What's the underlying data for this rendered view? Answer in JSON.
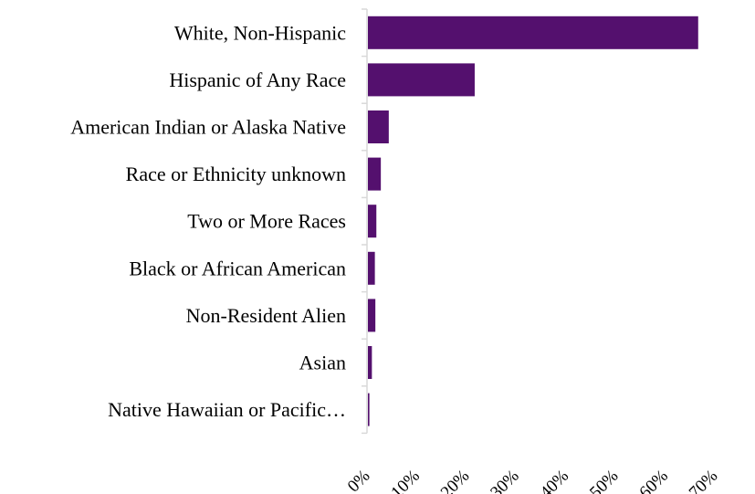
{
  "chart_data": {
    "type": "bar",
    "orientation": "horizontal",
    "categories": [
      "White, Non-Hispanic",
      "Hispanic of Any Race",
      "American Indian or Alaska Native",
      "Race or Ethnicity unknown",
      "Two or More Races",
      "Black or African American",
      "Non-Resident Alien",
      "Asian",
      "Native Hawaiian or Pacific…"
    ],
    "values": [
      66.5,
      21.5,
      4.2,
      2.6,
      1.7,
      1.4,
      1.5,
      0.8,
      0.3
    ],
    "xlim": [
      0,
      70
    ],
    "x_ticks": [
      "0%",
      "10%",
      "20%",
      "30%",
      "40%",
      "50%",
      "60%",
      "70%"
    ],
    "grid": false,
    "bar_color": "#54106e",
    "axis_color": "#d9d9d9"
  }
}
